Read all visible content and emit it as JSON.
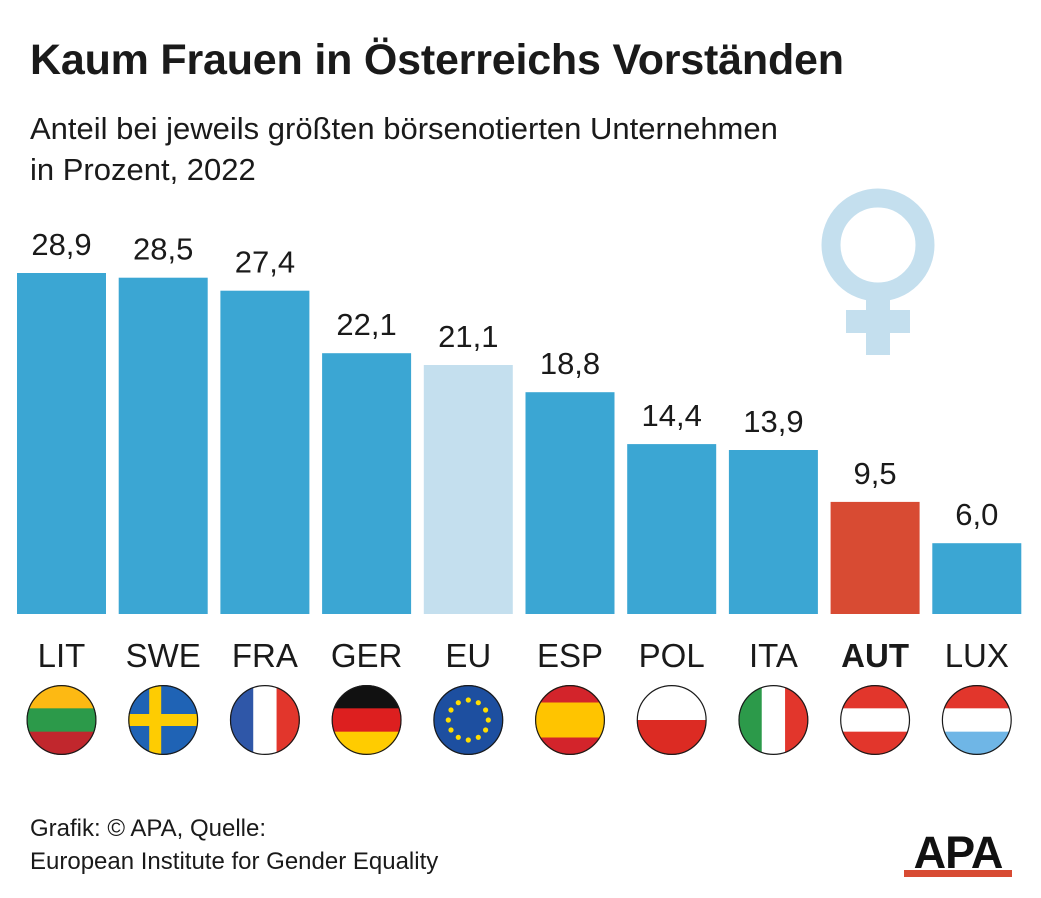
{
  "title": "Kaum Frauen in Österreichs Vorständen",
  "subtitle": {
    "line1": "Anteil bei jeweils größten börsenotierten Unternehmen",
    "line2": "in Prozent, 2022"
  },
  "footer": {
    "line1": "Grafik: © APA, Quelle:",
    "line2": "European Institute for Gender Equality"
  },
  "logo_text": "APA",
  "colors": {
    "bar": "#3ba6d3",
    "eu_bar": "#c4dfee",
    "highlight_bar": "#d84b33",
    "symbol": "#c4dfee",
    "logo": "#111111"
  },
  "chart_data": {
    "type": "bar",
    "categories": [
      "LIT",
      "SWE",
      "FRA",
      "GER",
      "EU",
      "ESP",
      "POL",
      "ITA",
      "AUT",
      "LUX"
    ],
    "values": [
      28.9,
      28.5,
      27.4,
      22.1,
      21.1,
      18.8,
      14.4,
      13.9,
      9.5,
      6.0
    ],
    "value_labels": [
      "28,9",
      "28,5",
      "27,4",
      "22,1",
      "21,1",
      "18,8",
      "14,4",
      "13,9",
      "9,5",
      "6,0"
    ],
    "highlight": "AUT",
    "reference": "EU",
    "flags": [
      "lithuania-flag-icon",
      "sweden-flag-icon",
      "france-flag-icon",
      "germany-flag-icon",
      "eu-flag-icon",
      "spain-flag-icon",
      "poland-flag-icon",
      "italy-flag-icon",
      "austria-flag-icon",
      "luxembourg-flag-icon"
    ],
    "title": "Kaum Frauen in Österreichs Vorständen",
    "xlabel": "",
    "ylabel": "",
    "ylim": [
      0,
      28.9
    ]
  }
}
